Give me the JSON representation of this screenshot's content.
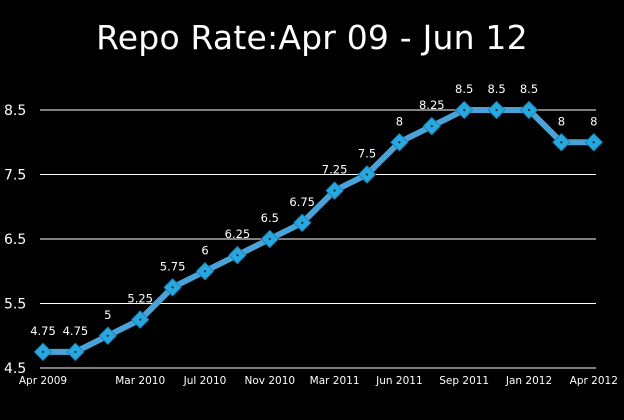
{
  "chart_data": {
    "type": "line",
    "title": "Repo Rate:Apr 09 - Jun 12",
    "xlabel": "",
    "ylabel": "",
    "ylim": [
      4.5,
      8.5
    ],
    "y_ticks": [
      "4.5",
      "5.5",
      "6.5",
      "7.5",
      "8.5"
    ],
    "x_tick_labels": [
      "Apr 2009",
      "Mar 2010",
      "Jul 2010",
      "Nov 2010",
      "Mar 2011",
      "Jun 2011",
      "Sep 2011",
      "Jan 2012",
      "Apr 2012"
    ],
    "grid": true,
    "legend": "none",
    "series": [
      {
        "values": [
          4.75,
          4.75,
          5,
          5.25,
          5.75,
          6,
          6.25,
          6.5,
          6.75,
          7.25,
          7.5,
          8,
          8.25,
          8.5,
          8.5,
          8.5,
          8,
          8
        ],
        "labels": [
          "4.75",
          "4.75",
          "5",
          "5.25",
          "5.75",
          "6",
          "6.25",
          "6.5",
          "6.75",
          "7.25",
          "7.5",
          "8",
          "8.25",
          "8.5",
          "8.5",
          "8.5",
          "8",
          "8"
        ]
      }
    ],
    "colors": {
      "line": "#4aa3d8",
      "marker": "#29a8e0",
      "marker_center": "#0b2d44",
      "grid": "#ffffff",
      "background": "#000000",
      "text": "#ffffff"
    }
  }
}
